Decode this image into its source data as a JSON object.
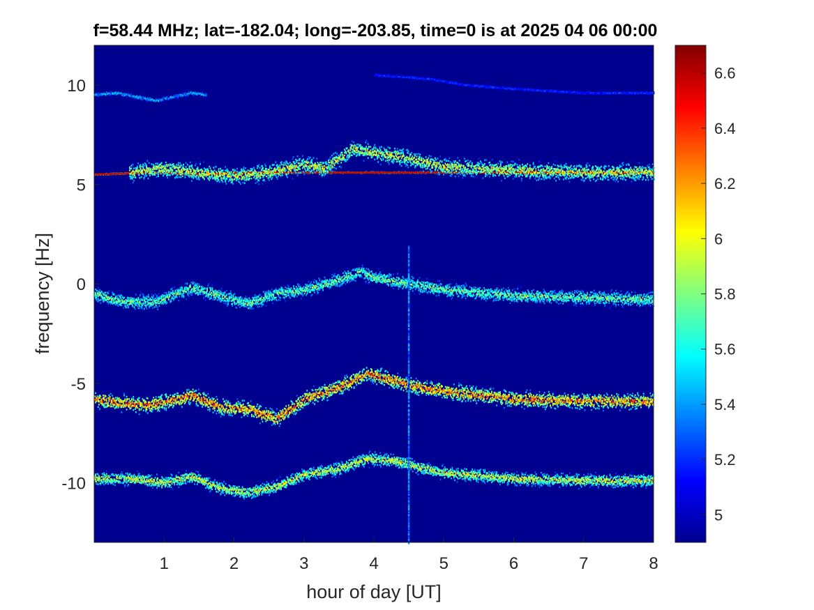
{
  "chart_data": {
    "type": "heatmap",
    "title": "f=58.44 MHz;  lat=-182.04; long=-203.85, time=0 is at 2025 04 06 00:00",
    "xlabel": "hour of day [UT]",
    "ylabel": "frequency [Hz]",
    "xlim": [
      0,
      8
    ],
    "ylim": [
      -13,
      12
    ],
    "xticks": [
      1,
      2,
      3,
      4,
      5,
      6,
      7,
      8
    ],
    "yticks": [
      10,
      5,
      0,
      -5,
      -10
    ],
    "colorbar": {
      "ticks": [
        6.6,
        6.4,
        6.2,
        6,
        5.8,
        5.6,
        5.4,
        5.2,
        5
      ],
      "range": [
        4.9,
        6.7
      ],
      "colormap": "jet"
    },
    "background_value": 4.9,
    "traces": [
      {
        "points": [
          [
            0,
            9.5
          ],
          [
            0.3,
            9.6
          ],
          [
            0.6,
            9.4
          ],
          [
            0.9,
            9.2
          ],
          [
            1.1,
            9.4
          ],
          [
            1.4,
            9.6
          ],
          [
            1.6,
            9.5
          ]
        ],
        "spread": 0.15,
        "peak": 5.6
      },
      {
        "points": [
          [
            4.0,
            10.5
          ],
          [
            4.4,
            10.4
          ],
          [
            4.8,
            10.3
          ],
          [
            5.3,
            10.0
          ],
          [
            6.0,
            9.8
          ],
          [
            7.0,
            9.6
          ],
          [
            8.0,
            9.6
          ]
        ],
        "spread": 0.1,
        "peak": 5.3
      },
      {
        "points": [
          [
            0,
            5.5
          ],
          [
            0.8,
            5.6
          ],
          [
            1.5,
            5.5
          ],
          [
            2.0,
            5.6
          ],
          [
            3.0,
            5.6
          ],
          [
            4.0,
            5.6
          ],
          [
            5.0,
            5.6
          ],
          [
            6.0,
            5.6
          ],
          [
            7.0,
            5.6
          ],
          [
            8.0,
            5.6
          ]
        ],
        "spread": 0.04,
        "peak": 6.6
      },
      {
        "points": [
          [
            0.5,
            5.6
          ],
          [
            1.0,
            5.8
          ],
          [
            1.5,
            5.6
          ],
          [
            2.0,
            5.4
          ],
          [
            2.5,
            5.6
          ],
          [
            3.0,
            6.0
          ],
          [
            3.3,
            5.8
          ],
          [
            3.7,
            6.8
          ],
          [
            4.0,
            6.6
          ],
          [
            4.5,
            6.3
          ],
          [
            5.0,
            5.9
          ],
          [
            6.0,
            5.7
          ],
          [
            7.0,
            5.6
          ],
          [
            8.0,
            5.6
          ]
        ],
        "spread": 0.6,
        "peak": 6.2
      },
      {
        "points": [
          [
            0,
            -0.5
          ],
          [
            0.4,
            -0.9
          ],
          [
            0.9,
            -0.9
          ],
          [
            1.1,
            -0.6
          ],
          [
            1.4,
            -0.2
          ],
          [
            1.8,
            -0.6
          ],
          [
            2.2,
            -1.0
          ],
          [
            2.6,
            -0.5
          ],
          [
            3.0,
            -0.3
          ],
          [
            3.5,
            0.2
          ],
          [
            3.8,
            0.6
          ],
          [
            4.0,
            0.3
          ],
          [
            4.5,
            0.0
          ],
          [
            5.0,
            -0.3
          ],
          [
            6.0,
            -0.6
          ],
          [
            7.0,
            -0.7
          ],
          [
            8.0,
            -0.8
          ]
        ],
        "spread": 0.5,
        "peak": 6.0
      },
      {
        "points": [
          [
            0,
            -5.8
          ],
          [
            0.4,
            -6.0
          ],
          [
            0.8,
            -6.1
          ],
          [
            1.2,
            -5.8
          ],
          [
            1.4,
            -5.6
          ],
          [
            1.8,
            -6.2
          ],
          [
            2.2,
            -6.3
          ],
          [
            2.6,
            -6.8
          ],
          [
            3.0,
            -5.8
          ],
          [
            3.5,
            -5.2
          ],
          [
            3.9,
            -4.5
          ],
          [
            4.2,
            -4.8
          ],
          [
            4.5,
            -5.1
          ],
          [
            5.0,
            -5.4
          ],
          [
            6.0,
            -5.8
          ],
          [
            7.0,
            -5.9
          ],
          [
            8.0,
            -5.9
          ]
        ],
        "spread": 0.55,
        "peak": 6.55
      },
      {
        "points": [
          [
            0,
            -9.8
          ],
          [
            0.5,
            -9.8
          ],
          [
            1.0,
            -10.0
          ],
          [
            1.4,
            -9.7
          ],
          [
            1.8,
            -10.3
          ],
          [
            2.2,
            -10.5
          ],
          [
            2.6,
            -10.2
          ],
          [
            3.0,
            -9.6
          ],
          [
            3.5,
            -9.3
          ],
          [
            3.9,
            -8.8
          ],
          [
            4.3,
            -8.9
          ],
          [
            4.6,
            -9.2
          ],
          [
            5.0,
            -9.5
          ],
          [
            6.0,
            -9.8
          ],
          [
            7.0,
            -9.9
          ],
          [
            8.0,
            -9.9
          ]
        ],
        "spread": 0.45,
        "peak": 6.2
      },
      {
        "points": [
          [
            4.5,
            2.0
          ],
          [
            4.5,
            -13.0
          ]
        ],
        "spread": 0.05,
        "peak": 5.5
      }
    ]
  }
}
